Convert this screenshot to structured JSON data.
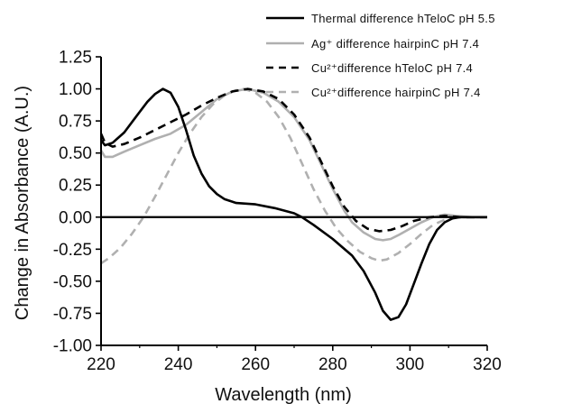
{
  "chart_data": {
    "type": "line",
    "xlabel": "Wavelength (nm)",
    "ylabel": "Change in Absorbance (A.U.)",
    "xlim": [
      220,
      320
    ],
    "ylim": [
      -1.0,
      1.25
    ],
    "xticks": [
      220,
      240,
      260,
      280,
      300,
      320
    ],
    "yticks": [
      -1.0,
      -0.75,
      -0.5,
      -0.25,
      0.0,
      0.25,
      0.5,
      0.75,
      1.0,
      1.25
    ],
    "zero_line": true,
    "grid": false,
    "legend_position": "top-right",
    "series": [
      {
        "name": "Thermal difference hTeloC pH 5.5",
        "color": "#000000",
        "dash": "solid",
        "points": [
          [
            220,
            0.6
          ],
          [
            221,
            0.56
          ],
          [
            223,
            0.58
          ],
          [
            226,
            0.66
          ],
          [
            229,
            0.78
          ],
          [
            232,
            0.9
          ],
          [
            234,
            0.96
          ],
          [
            236,
            1.0
          ],
          [
            238,
            0.97
          ],
          [
            240,
            0.86
          ],
          [
            242,
            0.68
          ],
          [
            244,
            0.48
          ],
          [
            246,
            0.34
          ],
          [
            248,
            0.24
          ],
          [
            250,
            0.18
          ],
          [
            252,
            0.14
          ],
          [
            255,
            0.11
          ],
          [
            260,
            0.1
          ],
          [
            265,
            0.07
          ],
          [
            270,
            0.03
          ],
          [
            272,
            0.0
          ],
          [
            275,
            -0.06
          ],
          [
            280,
            -0.17
          ],
          [
            285,
            -0.3
          ],
          [
            288,
            -0.42
          ],
          [
            291,
            -0.59
          ],
          [
            293,
            -0.73
          ],
          [
            295,
            -0.8
          ],
          [
            297,
            -0.78
          ],
          [
            299,
            -0.68
          ],
          [
            301,
            -0.52
          ],
          [
            303,
            -0.36
          ],
          [
            305,
            -0.21
          ],
          [
            307,
            -0.1
          ],
          [
            309,
            -0.04
          ],
          [
            311,
            -0.01
          ],
          [
            313,
            0.0
          ],
          [
            315,
            0.0
          ],
          [
            320,
            0.0
          ]
        ]
      },
      {
        "name": "Ag⁺ difference hairpinC pH 7.4",
        "color": "#b0b0b0",
        "dash": "solid",
        "points": [
          [
            220,
            0.52
          ],
          [
            221,
            0.47
          ],
          [
            223,
            0.47
          ],
          [
            226,
            0.51
          ],
          [
            230,
            0.56
          ],
          [
            234,
            0.61
          ],
          [
            238,
            0.65
          ],
          [
            242,
            0.72
          ],
          [
            246,
            0.82
          ],
          [
            250,
            0.92
          ],
          [
            254,
            0.98
          ],
          [
            258,
            1.0
          ],
          [
            262,
            0.97
          ],
          [
            266,
            0.9
          ],
          [
            270,
            0.78
          ],
          [
            274,
            0.6
          ],
          [
            277,
            0.41
          ],
          [
            280,
            0.22
          ],
          [
            283,
            0.05
          ],
          [
            285,
            -0.04
          ],
          [
            288,
            -0.12
          ],
          [
            291,
            -0.17
          ],
          [
            293,
            -0.18
          ],
          [
            295,
            -0.17
          ],
          [
            297,
            -0.14
          ],
          [
            300,
            -0.09
          ],
          [
            303,
            -0.04
          ],
          [
            306,
            0.0
          ],
          [
            309,
            0.02
          ],
          [
            312,
            0.01
          ],
          [
            316,
            0.0
          ],
          [
            320,
            0.0
          ]
        ]
      },
      {
        "name": "Cu²⁺difference hTeloC pH 7.4",
        "color": "#000000",
        "dash": "dashed",
        "points": [
          [
            220,
            0.65
          ],
          [
            221,
            0.58
          ],
          [
            223,
            0.55
          ],
          [
            226,
            0.57
          ],
          [
            230,
            0.62
          ],
          [
            234,
            0.68
          ],
          [
            238,
            0.74
          ],
          [
            242,
            0.8
          ],
          [
            246,
            0.87
          ],
          [
            250,
            0.93
          ],
          [
            254,
            0.98
          ],
          [
            258,
            1.0
          ],
          [
            262,
            0.98
          ],
          [
            266,
            0.92
          ],
          [
            270,
            0.8
          ],
          [
            274,
            0.62
          ],
          [
            277,
            0.43
          ],
          [
            280,
            0.24
          ],
          [
            283,
            0.08
          ],
          [
            286,
            -0.03
          ],
          [
            289,
            -0.09
          ],
          [
            292,
            -0.11
          ],
          [
            295,
            -0.1
          ],
          [
            298,
            -0.07
          ],
          [
            301,
            -0.03
          ],
          [
            305,
            0.0
          ],
          [
            309,
            0.01
          ],
          [
            313,
            0.0
          ],
          [
            320,
            0.0
          ]
        ]
      },
      {
        "name": "Cu²⁺difference hairpinC pH 7.4",
        "color": "#b0b0b0",
        "dash": "dashed",
        "points": [
          [
            220,
            -0.36
          ],
          [
            222,
            -0.32
          ],
          [
            225,
            -0.24
          ],
          [
            228,
            -0.13
          ],
          [
            231,
            0.0
          ],
          [
            234,
            0.16
          ],
          [
            237,
            0.33
          ],
          [
            240,
            0.5
          ],
          [
            243,
            0.65
          ],
          [
            246,
            0.78
          ],
          [
            249,
            0.88
          ],
          [
            252,
            0.95
          ],
          [
            255,
            0.99
          ],
          [
            257,
            1.0
          ],
          [
            260,
            0.97
          ],
          [
            263,
            0.9
          ],
          [
            266,
            0.78
          ],
          [
            269,
            0.62
          ],
          [
            272,
            0.42
          ],
          [
            275,
            0.22
          ],
          [
            278,
            0.05
          ],
          [
            281,
            -0.09
          ],
          [
            284,
            -0.19
          ],
          [
            287,
            -0.27
          ],
          [
            290,
            -0.32
          ],
          [
            292,
            -0.34
          ],
          [
            294,
            -0.33
          ],
          [
            297,
            -0.28
          ],
          [
            300,
            -0.21
          ],
          [
            303,
            -0.13
          ],
          [
            306,
            -0.06
          ],
          [
            309,
            -0.02
          ],
          [
            312,
            0.0
          ],
          [
            316,
            0.0
          ],
          [
            320,
            0.0
          ]
        ]
      }
    ]
  }
}
